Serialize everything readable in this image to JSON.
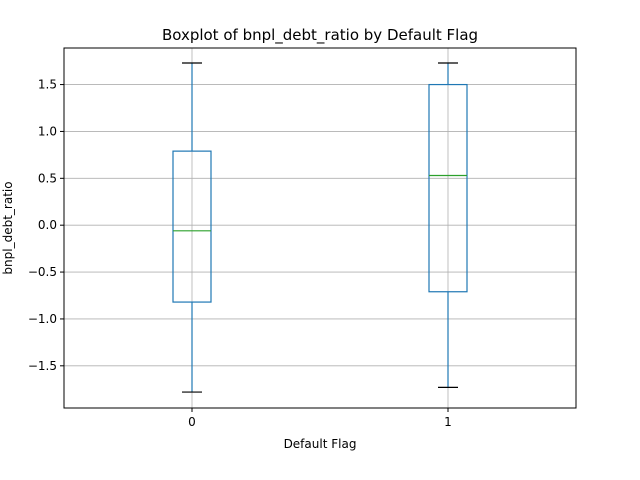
{
  "chart_data": {
    "type": "boxplot",
    "title": "Boxplot of bnpl_debt_ratio by Default Flag",
    "xlabel": "Default Flag",
    "ylabel": "bnpl_debt_ratio",
    "ylim": [
      -1.95,
      1.89
    ],
    "yticks": [
      -1.5,
      -1.0,
      -0.5,
      0.0,
      0.5,
      1.0,
      1.5
    ],
    "ytick_labels": [
      "−1.5",
      "−1.0",
      "−0.5",
      "0.0",
      "0.5",
      "1.0",
      "1.5"
    ],
    "grid": true,
    "categories": [
      "0",
      "1"
    ],
    "boxes": [
      {
        "category": "0",
        "whisker_low": -1.78,
        "q1": -0.82,
        "median": -0.06,
        "q3": 0.79,
        "whisker_high": 1.73
      },
      {
        "category": "1",
        "whisker_low": -1.73,
        "q1": -0.71,
        "median": 0.53,
        "q3": 1.5,
        "whisker_high": 1.73
      }
    ],
    "colors": {
      "box": "#1f77b4",
      "median": "#2ca02c",
      "whisker_cap": "#000000",
      "grid": "#b0b0b0",
      "axes": "#000000"
    }
  }
}
